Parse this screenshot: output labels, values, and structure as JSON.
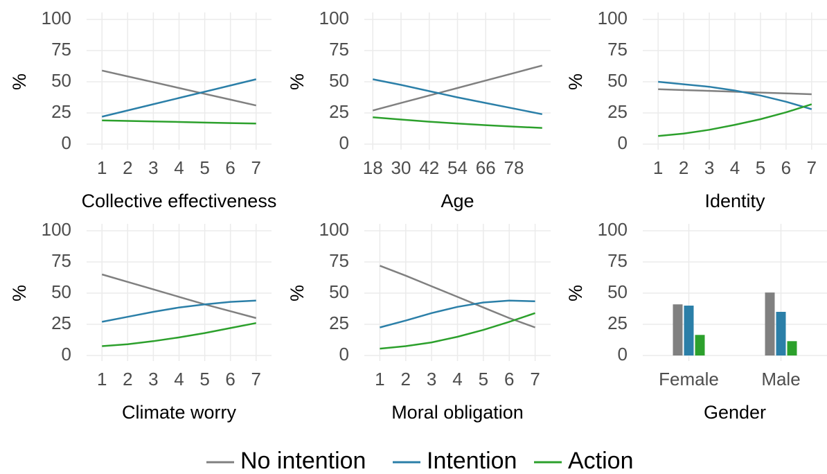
{
  "chart_data": [
    {
      "type": "line",
      "xlabel": "Collective effectiveness",
      "ylabel": "%",
      "x": [
        1,
        2,
        3,
        4,
        5,
        6,
        7
      ],
      "xlim": [
        0.4,
        7.6
      ],
      "xticks": [
        1,
        2,
        3,
        4,
        5,
        6,
        7
      ],
      "ylim": [
        0,
        100
      ],
      "yticks": [
        0,
        25,
        50,
        75,
        100
      ],
      "grid": true,
      "series": [
        {
          "name": "No intention",
          "color": "#808080",
          "values": [
            59,
            54.3,
            49.7,
            45,
            40.3,
            35.7,
            31
          ]
        },
        {
          "name": "Intention",
          "color": "#2b7fa8",
          "values": [
            22,
            27,
            32,
            37,
            42,
            47,
            52
          ]
        },
        {
          "name": "Action",
          "color": "#2ca02c",
          "values": [
            19,
            18.6,
            18.2,
            17.8,
            17.3,
            16.9,
            16.5
          ]
        }
      ]
    },
    {
      "type": "line",
      "xlabel": "Age",
      "ylabel": "%",
      "x": [
        18,
        30,
        42,
        54,
        66,
        78,
        90
      ],
      "xlim": [
        14.4,
        93.6
      ],
      "xticks": [
        18,
        30,
        42,
        54,
        66,
        78
      ],
      "ylim": [
        0,
        100
      ],
      "yticks": [
        0,
        25,
        50,
        75,
        100
      ],
      "grid": true,
      "series": [
        {
          "name": "No intention",
          "color": "#808080",
          "values": [
            27,
            33,
            39,
            45,
            51,
            57,
            63
          ]
        },
        {
          "name": "Intention",
          "color": "#2b7fa8",
          "values": [
            52,
            47.5,
            42.5,
            37.5,
            33,
            28.5,
            24
          ]
        },
        {
          "name": "Action",
          "color": "#2ca02c",
          "values": [
            21.5,
            19.7,
            18,
            16.5,
            15.2,
            14,
            13
          ]
        }
      ]
    },
    {
      "type": "line",
      "xlabel": "Identity",
      "ylabel": "%",
      "x": [
        1,
        2,
        3,
        4,
        5,
        6,
        7
      ],
      "xlim": [
        0.4,
        7.6
      ],
      "xticks": [
        1,
        2,
        3,
        4,
        5,
        6,
        7
      ],
      "ylim": [
        0,
        100
      ],
      "yticks": [
        0,
        25,
        50,
        75,
        100
      ],
      "grid": true,
      "series": [
        {
          "name": "No intention",
          "color": "#808080",
          "values": [
            44,
            43.3,
            42.7,
            42,
            41.3,
            40.7,
            40
          ]
        },
        {
          "name": "Intention",
          "color": "#2b7fa8",
          "values": [
            50,
            48,
            46,
            43,
            39,
            34,
            28
          ]
        },
        {
          "name": "Action",
          "color": "#2ca02c",
          "values": [
            6.5,
            8.5,
            11.5,
            15.5,
            20,
            25.5,
            32
          ]
        }
      ]
    },
    {
      "type": "line",
      "xlabel": "Climate worry",
      "ylabel": "%",
      "x": [
        1,
        2,
        3,
        4,
        5,
        6,
        7
      ],
      "xlim": [
        0.4,
        7.6
      ],
      "xticks": [
        1,
        2,
        3,
        4,
        5,
        6,
        7
      ],
      "ylim": [
        0,
        100
      ],
      "yticks": [
        0,
        25,
        50,
        75,
        100
      ],
      "grid": true,
      "series": [
        {
          "name": "No intention",
          "color": "#808080",
          "values": [
            65,
            59,
            53,
            47,
            41,
            35.5,
            30
          ]
        },
        {
          "name": "Intention",
          "color": "#2b7fa8",
          "values": [
            27,
            31,
            35,
            38.5,
            41,
            43,
            44
          ]
        },
        {
          "name": "Action",
          "color": "#2ca02c",
          "values": [
            7.5,
            9,
            11.5,
            14.5,
            18,
            22,
            26
          ]
        }
      ]
    },
    {
      "type": "line",
      "xlabel": "Moral obligation",
      "ylabel": "%",
      "x": [
        1,
        2,
        3,
        4,
        5,
        6,
        7
      ],
      "xlim": [
        0.4,
        7.6
      ],
      "xticks": [
        1,
        2,
        3,
        4,
        5,
        6,
        7
      ],
      "ylim": [
        0,
        100
      ],
      "yticks": [
        0,
        25,
        50,
        75,
        100
      ],
      "grid": true,
      "series": [
        {
          "name": "No intention",
          "color": "#808080",
          "values": [
            72,
            64,
            55.5,
            47,
            38.5,
            30,
            22.5
          ]
        },
        {
          "name": "Intention",
          "color": "#2b7fa8",
          "values": [
            22.5,
            28,
            34,
            39,
            42.5,
            44,
            43.5
          ]
        },
        {
          "name": "Action",
          "color": "#2ca02c",
          "values": [
            5.5,
            7.5,
            10.5,
            15,
            20.5,
            27,
            34
          ]
        }
      ]
    },
    {
      "type": "bar",
      "xlabel": "Gender",
      "ylabel": "%",
      "categories": [
        "Female",
        "Male"
      ],
      "ylim": [
        0,
        100
      ],
      "yticks": [
        0,
        25,
        50,
        75,
        100
      ],
      "grid": true,
      "series": [
        {
          "name": "No intention",
          "color": "#808080",
          "values": [
            41,
            50.5
          ]
        },
        {
          "name": "Intention",
          "color": "#2b7fa8",
          "values": [
            40,
            35
          ]
        },
        {
          "name": "Action",
          "color": "#2ca02c",
          "values": [
            16.5,
            11.5
          ]
        }
      ]
    }
  ]
}
